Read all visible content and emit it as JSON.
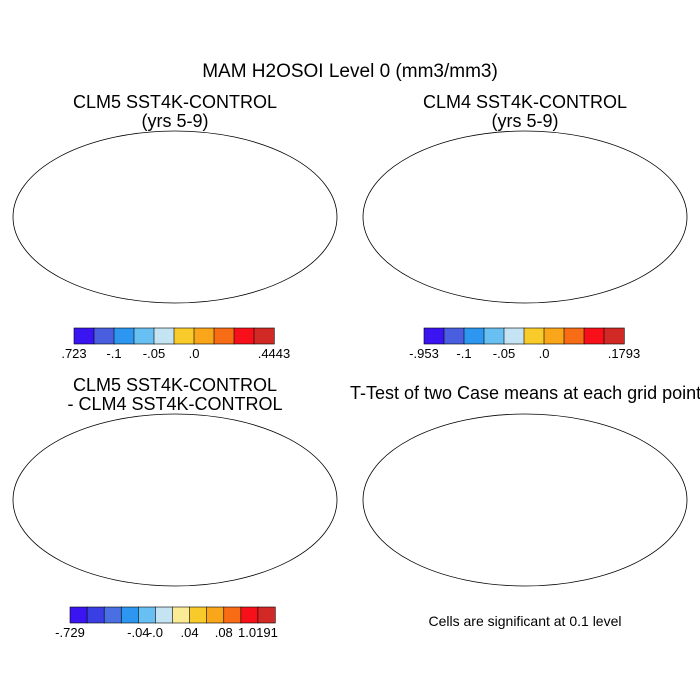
{
  "figure": {
    "title": "MAM H2OSOI Level 0 (mm3/mm3)",
    "note": "Cells are significant at 0.1 level"
  },
  "panels": [
    {
      "title_line1": "CLM5 SST4K-CONTROL",
      "title_line2": "(yrs 5-9)"
    },
    {
      "title_line1": "CLM4 SST4K-CONTROL",
      "title_line2": "(yrs 5-9)"
    },
    {
      "title_line1": "CLM5 SST4K-CONTROL",
      "title_line2": "- CLM4 SST4K-CONTROL"
    },
    {
      "title_line1": "T-Test of two Case means at each grid point"
    }
  ],
  "colorbars": [
    {
      "colors": [
        "#3b14f2",
        "#4a5fe0",
        "#2c96f0",
        "#68c0f2",
        "#c4e4f4",
        "#f9cb2a",
        "#f9a61a",
        "#f76c15",
        "#f7101a",
        "#d12a26"
      ],
      "labels": [
        ".723",
        "-.1",
        "-.05",
        ".0",
        ".4443"
      ],
      "label_slots": [
        0,
        2,
        4,
        6,
        10
      ]
    },
    {
      "colors": [
        "#3b14f2",
        "#4a5fe0",
        "#2c96f0",
        "#68c0f2",
        "#c4e4f4",
        "#f9cb2a",
        "#f9a61a",
        "#f76c15",
        "#f7101a",
        "#d12a26"
      ],
      "labels": [
        "-.953",
        "-.1",
        "-.05",
        ".0",
        ".1793"
      ],
      "label_slots": [
        0,
        2,
        4,
        6,
        10
      ]
    },
    {
      "colors": [
        "#3b14f2",
        "#3a3fe4",
        "#4a6fe2",
        "#2c96f0",
        "#68c0f2",
        "#c4e4f4",
        "#fbeb95",
        "#f9cb2a",
        "#f9a61a",
        "#f76c15",
        "#f7101a",
        "#d12a26"
      ],
      "labels": [
        "-.729",
        "-.04",
        "-.0",
        ".04",
        ".08",
        "1.0191"
      ],
      "label_slots": [
        0,
        4,
        5,
        7,
        9,
        11
      ]
    }
  ],
  "colors": {
    "land_outline": "#000000",
    "significance": "#e8000b"
  }
}
